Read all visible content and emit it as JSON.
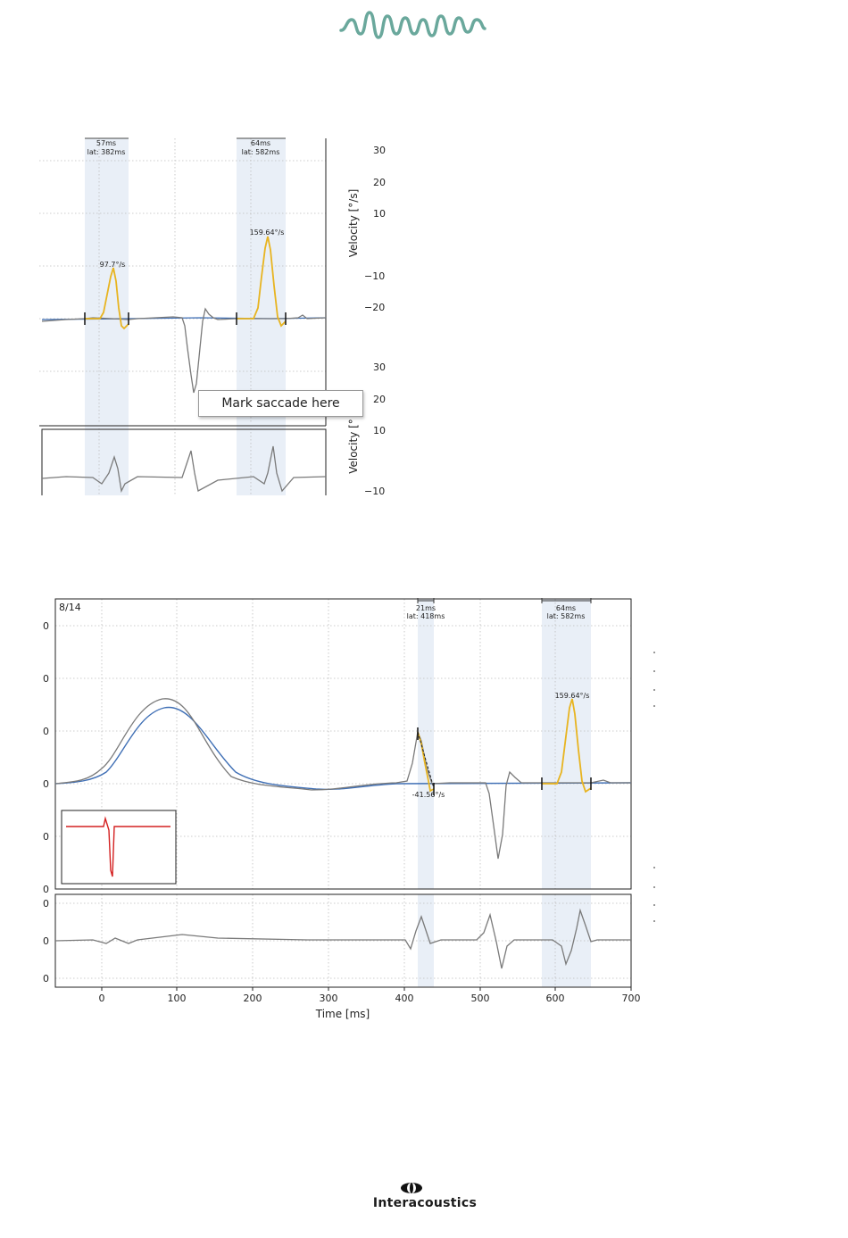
{
  "brand": {
    "name": "Interacoustics",
    "accent_color": "#6aa89c"
  },
  "top_panel": {
    "annotations": [
      {
        "duration": "57ms",
        "latency": "lat: 382ms"
      },
      {
        "duration": "64ms",
        "latency": "lat: 582ms"
      }
    ],
    "peak_labels": [
      "97.7°/s",
      "159.64°/s"
    ],
    "y_ticks_right": [
      "30",
      "20",
      "10",
      "−10",
      "−20"
    ],
    "y_ticks_right_lower": [
      "30",
      "20",
      "10",
      "−10"
    ],
    "ylabel_upper": "Velocity [°/s]",
    "ylabel_lower": "Velocity [°",
    "context_menu": {
      "item": "Mark saccade here"
    }
  },
  "bottom_panel": {
    "trial_label": "8/14",
    "annotations": [
      {
        "duration": "21ms",
        "latency": "lat: 418ms"
      },
      {
        "duration": "64ms",
        "latency": "lat: 582ms"
      }
    ],
    "peak_labels": [
      "-41.56°/s",
      "159.64°/s"
    ],
    "x_ticks": [
      "0",
      "100",
      "200",
      "300",
      "400",
      "500",
      "600",
      "700"
    ],
    "xlabel": "Time [ms]",
    "y_ticks_upper": [
      "0",
      "0",
      "0",
      "0",
      "0",
      "0"
    ],
    "y_ticks_lower": [
      "0",
      "0",
      "0"
    ]
  },
  "colors": {
    "gaze_trace": "#7a7a7a",
    "stimulus_trace": "#3f6fb5",
    "saccade_highlight": "#e8b420",
    "saccade_band": "#e9eff7",
    "stimulus_inset": "#d42020"
  }
}
